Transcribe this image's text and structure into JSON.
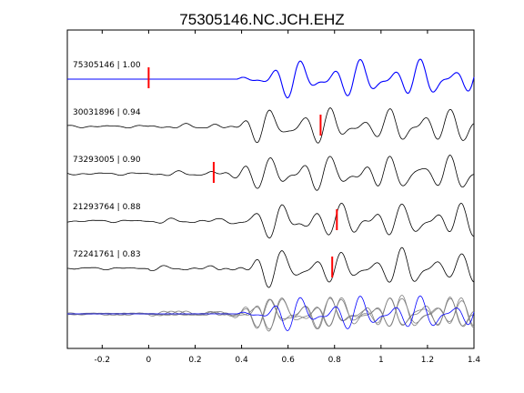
{
  "chart_data": {
    "type": "line",
    "title": "75305146.NC.JCH.EHZ",
    "xlabel": "",
    "ylabel": "",
    "xlim": [
      -0.35,
      1.4
    ],
    "xticks": [
      -0.2,
      0,
      0.2,
      0.4,
      0.6,
      0.8,
      1,
      1.2,
      1.4
    ],
    "xtick_labels": [
      "-0.2",
      "0",
      "0.2",
      "0.4",
      "0.6",
      "0.8",
      "1",
      "1.2",
      "1.4"
    ],
    "grid": false,
    "legend": "none",
    "colors": {
      "reference": "#0000ff",
      "trace": "#000000",
      "overlay": "#808080",
      "pick": "#ff0000"
    },
    "series": [
      {
        "name": "75305146 | 1.00",
        "color": "#0000ff",
        "pick": 0.0,
        "onset": 0.18,
        "amp": 1.0,
        "seed": 1
      },
      {
        "name": "30031896 | 0.94",
        "color": "#000000",
        "pick": 0.74,
        "onset": 0.05,
        "amp": 0.9,
        "seed": 2
      },
      {
        "name": "73293005 | 0.90",
        "color": "#000000",
        "pick": 0.28,
        "onset": 0.05,
        "amp": 0.9,
        "seed": 3
      },
      {
        "name": "21293764 | 0.88",
        "color": "#000000",
        "pick": 0.81,
        "onset": 0.1,
        "amp": 0.9,
        "seed": 4
      },
      {
        "name": "72241761 | 0.83",
        "color": "#000000",
        "pick": 0.79,
        "onset": 0.1,
        "amp": 0.9,
        "seed": 5
      }
    ]
  }
}
